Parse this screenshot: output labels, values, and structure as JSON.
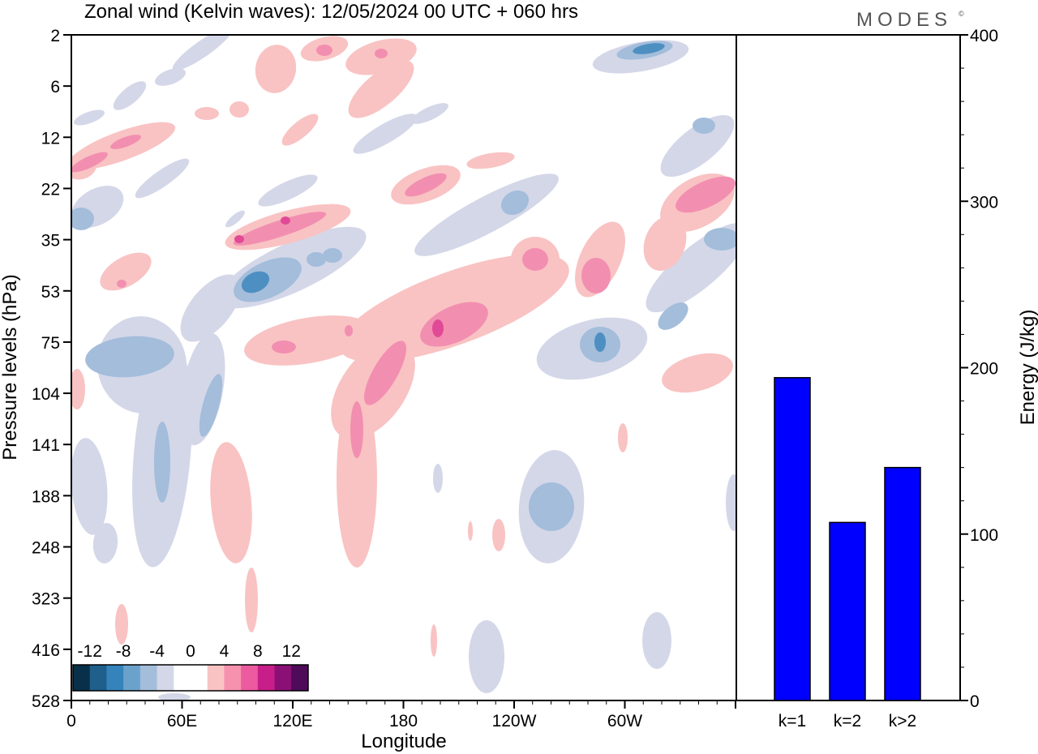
{
  "title": "Zonal wind (Kelvin waves):  12/05/2024  00 UTC  + 060 hrs",
  "brand": "MODES",
  "brand_mark": "©",
  "chart_data": [
    {
      "type": "heatmap",
      "title": "Zonal wind (Kelvin waves):  12/05/2024  00 UTC  + 060 hrs",
      "xlabel": "Longitude",
      "ylabel": "Pressure levels (hPa)",
      "x_ticks": [
        "0",
        "60E",
        "120E",
        "180",
        "120W",
        "60W"
      ],
      "y_ticks": [
        "2",
        "6",
        "12",
        "22",
        "35",
        "53",
        "75",
        "104",
        "141",
        "188",
        "248",
        "323",
        "416",
        "528"
      ],
      "colorbar": {
        "labels": [
          "-12",
          "-8",
          "-4",
          "0",
          "4",
          "8",
          "12"
        ],
        "colors": [
          "#08304a",
          "#1e5f8c",
          "#3583bb",
          "#6aa2cc",
          "#a3bddb",
          "#d4d7e8",
          "#ffffff",
          "#ffffff",
          "#f9c3c3",
          "#f792ae",
          "#ec5a9f",
          "#c81e89",
          "#8a1076",
          "#4f0a5a"
        ]
      },
      "palette": {
        "positive_weak": "#f9c3c3",
        "positive_mid": "#f28fb0",
        "positive_strong": "#e04a96",
        "negative_weak": "#d4d7e8",
        "negative_mid": "#9bb6d8",
        "negative_strong": "#4e8fc2"
      }
    },
    {
      "type": "bar",
      "categories": [
        "k=1",
        "k=2",
        "k>2"
      ],
      "values": [
        194,
        107,
        140
      ],
      "ylabel": "Energy (J/kg)",
      "ylim": [
        0,
        400
      ],
      "y_ticks": [
        "0",
        "100",
        "200",
        "300",
        "400"
      ],
      "color": "#0000ff"
    }
  ]
}
